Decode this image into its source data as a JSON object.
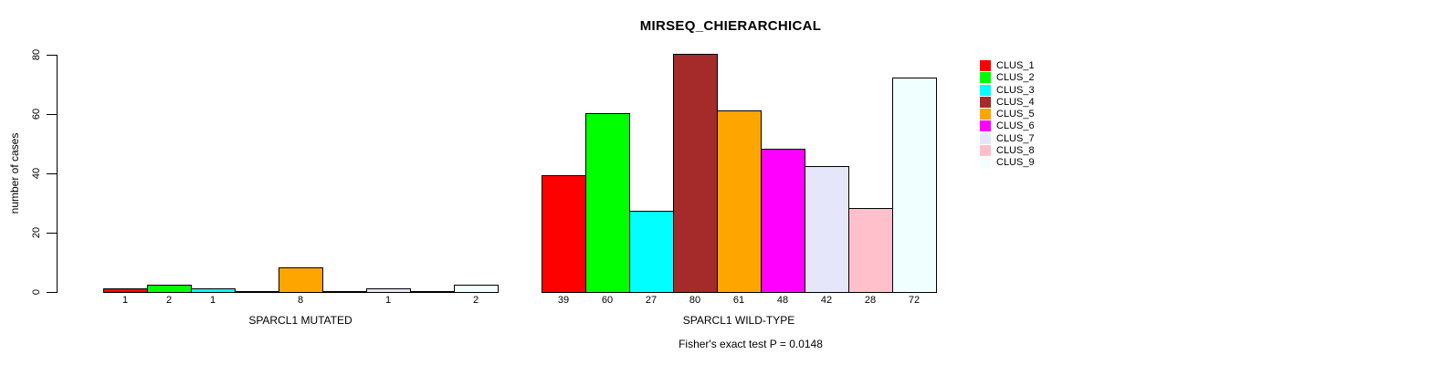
{
  "chart_data": {
    "type": "bar",
    "title": "MIRSEQ_CHIERARCHICAL",
    "ylabel": "number of cases",
    "ylim": [
      0,
      80
    ],
    "yticks": [
      0,
      20,
      40,
      60,
      80
    ],
    "grid": false,
    "legend_position": "right-outside",
    "clusters": [
      {
        "label": "CLUS_1",
        "color": "#FF0000"
      },
      {
        "label": "CLUS_2",
        "color": "#00FF00"
      },
      {
        "label": "CLUS_3",
        "color": "#00FFFF"
      },
      {
        "label": "CLUS_4",
        "color": "#A52A2A"
      },
      {
        "label": "CLUS_5",
        "color": "#FFA500"
      },
      {
        "label": "CLUS_6",
        "color": "#FF00FF"
      },
      {
        "label": "CLUS_7",
        "color": "#E6E6FA"
      },
      {
        "label": "CLUS_8",
        "color": "#FFC0CB"
      },
      {
        "label": "CLUS_9",
        "color": "#F0FFFF"
      }
    ],
    "groups": [
      {
        "label": "SPARCL1 MUTATED",
        "values": [
          1,
          2,
          1,
          0,
          8,
          0,
          1,
          0,
          2
        ],
        "bar_labels": [
          "1",
          "2",
          "1",
          "",
          "8",
          "",
          "1",
          "",
          "2"
        ]
      },
      {
        "label": "SPARCL1 WILD-TYPE",
        "values": [
          39,
          60,
          27,
          80,
          61,
          48,
          42,
          28,
          72
        ],
        "bar_labels": [
          "39",
          "60",
          "27",
          "80",
          "61",
          "48",
          "42",
          "28",
          "72"
        ]
      }
    ],
    "annotation": "Fisher's exact test P = 0.0148"
  }
}
